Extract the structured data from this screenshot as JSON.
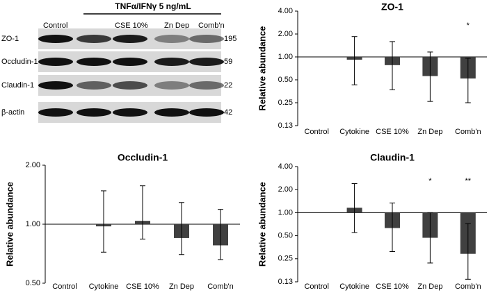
{
  "blot": {
    "header": "TNFα/IFNγ 5 ng/mL",
    "lanes": [
      "Control",
      "CSE 10%",
      "Zn Dep",
      "Comb'n"
    ],
    "rows": [
      {
        "label": "ZO-1",
        "mw": "195"
      },
      {
        "label": "Occludin-1",
        "mw": "59"
      },
      {
        "label": "Claudin-1",
        "mw": "22"
      },
      {
        "label": "β-actin",
        "mw": "42"
      }
    ]
  },
  "chart_data": [
    {
      "type": "bar",
      "title": "ZO-1",
      "y_label": "Relative abundance",
      "yscale": "log",
      "color": "#404040",
      "categories": [
        "Control",
        "Cytokine",
        "CSE 10%",
        "Zn Dep",
        "Comb'n"
      ],
      "values": [
        1,
        0.92,
        0.78,
        0.56,
        0.52
      ],
      "lower": [
        null,
        0.43,
        0.37,
        0.26,
        0.25
      ],
      "upper": [
        null,
        1.85,
        1.59,
        1.16,
        0.96
      ],
      "significance": [
        null,
        null,
        null,
        null,
        "*"
      ],
      "ylim": [
        0.125,
        4
      ],
      "yticks": [
        {
          "value": 4,
          "label": "4.00"
        },
        {
          "value": 2,
          "label": "2.00"
        },
        {
          "value": 1,
          "label": "1.00"
        },
        {
          "value": 0.5,
          "label": "0.50"
        },
        {
          "value": 0.25,
          "label": "0.25"
        },
        {
          "value": 0.125,
          "label": "0.13"
        }
      ]
    },
    {
      "type": "bar",
      "title": "Occludin-1",
      "y_label": "Relative abundance",
      "yscale": "log",
      "color": "#404040",
      "categories": [
        "Control",
        "Cytokine",
        "CSE 10%",
        "Zn Dep",
        "Comb'n"
      ],
      "values": [
        1,
        0.975,
        1.04,
        0.85,
        0.78
      ],
      "lower": [
        null,
        0.72,
        0.84,
        0.7,
        0.66
      ],
      "upper": [
        null,
        1.48,
        1.57,
        1.29,
        1.19
      ],
      "significance": [
        null,
        null,
        null,
        null,
        null
      ],
      "ylim": [
        0.5,
        2
      ],
      "yticks": [
        {
          "value": 2,
          "label": "2.00"
        },
        {
          "value": 1,
          "label": "1.00"
        },
        {
          "value": 0.5,
          "label": "0.50"
        }
      ]
    },
    {
      "type": "bar",
      "title": "Claudin-1",
      "y_label": "Relative abundance",
      "yscale": "log",
      "color": "#404040",
      "categories": [
        "Control",
        "Cytokine",
        "CSE 10%",
        "Zn Dep",
        "Comb'n"
      ],
      "values": [
        1,
        1.16,
        0.63,
        0.47,
        0.29
      ],
      "lower": [
        null,
        0.55,
        0.31,
        0.22,
        0.135
      ],
      "upper": [
        null,
        2.4,
        1.34,
        1.0,
        0.72
      ],
      "significance": [
        null,
        null,
        null,
        "*",
        "**"
      ],
      "ylim": [
        0.125,
        4
      ],
      "yticks": [
        {
          "value": 4,
          "label": "4.00"
        },
        {
          "value": 2,
          "label": "2.00"
        },
        {
          "value": 1,
          "label": "1.00"
        },
        {
          "value": 0.5,
          "label": "0.50"
        },
        {
          "value": 0.25,
          "label": "0.25"
        },
        {
          "value": 0.125,
          "label": "0.13"
        }
      ]
    }
  ]
}
